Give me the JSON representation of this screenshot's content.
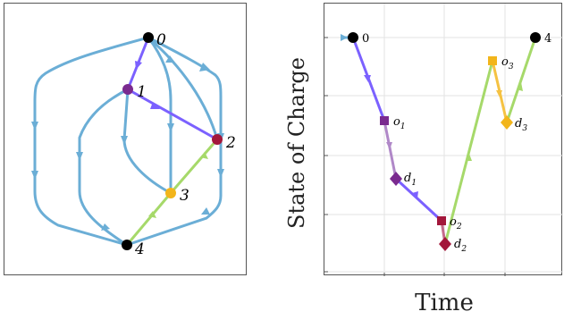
{
  "left_graph": {
    "nodes": [
      {
        "id": "0",
        "label": "0"
      },
      {
        "id": "1",
        "label": "1"
      },
      {
        "id": "2",
        "label": "2"
      },
      {
        "id": "3",
        "label": "3"
      },
      {
        "id": "4",
        "label": "4"
      }
    ]
  },
  "right_plot": {
    "ylabel": "State of Charge",
    "xlabel": "Time",
    "start_label": "0",
    "end_label": "4",
    "points": [
      {
        "name": "o",
        "sub": "1"
      },
      {
        "name": "d",
        "sub": "1"
      },
      {
        "name": "o",
        "sub": "2"
      },
      {
        "name": "d",
        "sub": "2"
      },
      {
        "name": "o",
        "sub": "3"
      },
      {
        "name": "d",
        "sub": "3"
      }
    ]
  },
  "colors": {
    "edge_blue": "#6baed6",
    "route_violet": "#7b61ff",
    "route_green": "#a6d96a",
    "route_orange": "#f5c242",
    "node_purple": "#7a2a8f",
    "node_red": "#a3173b",
    "node_yellow": "#f2b51b",
    "node_black": "#000000"
  }
}
